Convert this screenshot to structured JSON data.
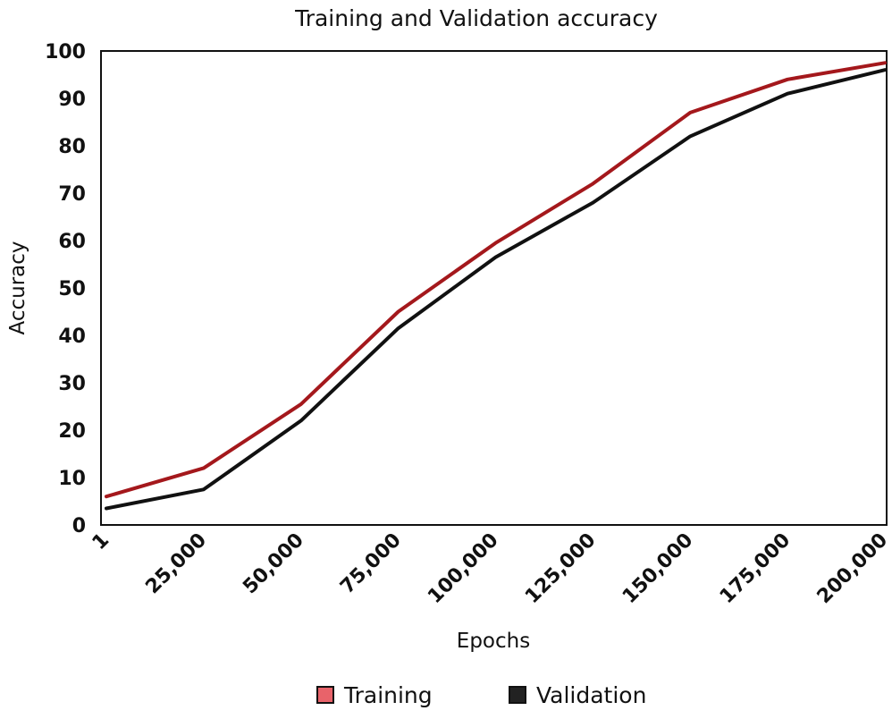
{
  "chart_data": {
    "type": "line",
    "title": "Training and Validation accuracy",
    "xlabel": "Epochs",
    "ylabel": "Accuracy",
    "categories": [
      "1",
      "25,000",
      "50,000",
      "75,000",
      "100,000",
      "125,000",
      "150,000",
      "175,000",
      "200,000"
    ],
    "ylim": [
      0,
      100
    ],
    "yticks": [
      "0",
      "10",
      "20",
      "30",
      "40",
      "50",
      "60",
      "70",
      "80",
      "90",
      "100"
    ],
    "grid": false,
    "legend_position": "bottom",
    "series": [
      {
        "name": "Training",
        "color": "#a4181c",
        "legend_color": "#e8636a",
        "values": [
          6,
          12,
          25.5,
          45,
          59.5,
          72,
          87,
          94,
          97.5
        ]
      },
      {
        "name": "Validation",
        "color": "#111111",
        "legend_color": "#222222",
        "values": [
          3.5,
          7.5,
          22,
          41.5,
          56.5,
          68,
          82,
          91,
          96
        ]
      }
    ]
  }
}
